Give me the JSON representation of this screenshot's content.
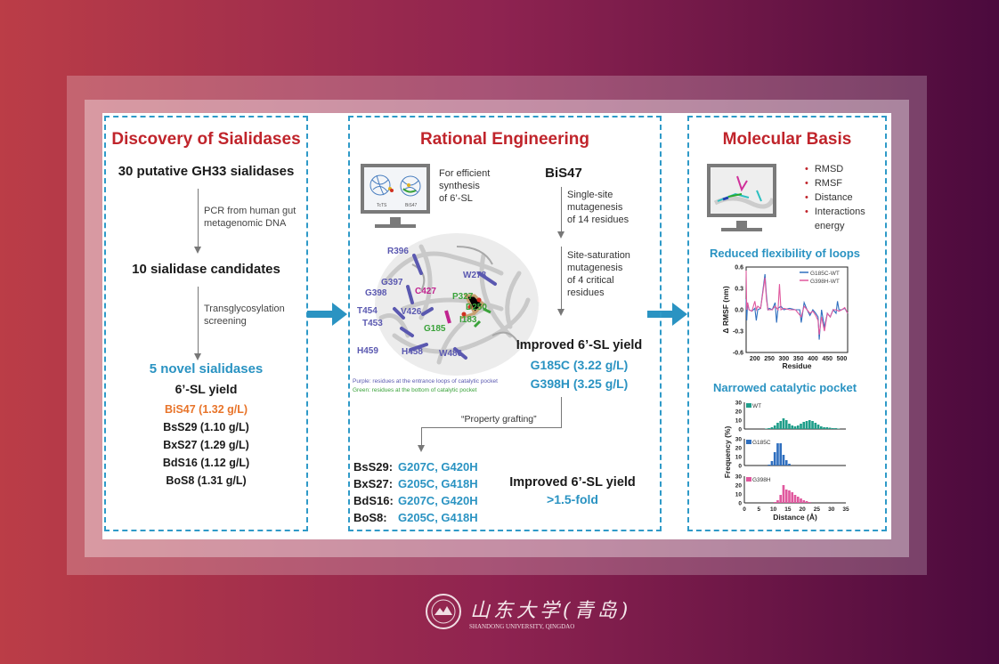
{
  "left": {
    "title": "Discovery of Sialidases",
    "step1": "30 putative GH33 sialidases",
    "arrow1": [
      "PCR from human gut",
      "metagenomic DNA"
    ],
    "step2": "10 sialidase candidates",
    "arrow2": [
      "Transglycosylation",
      "screening"
    ],
    "step3": "5 novel sialidases",
    "yield_label": "6’-SL yield",
    "yields": [
      {
        "text": "BiS47 (1.32 g/L)",
        "highlight": true
      },
      {
        "text": "BsS29 (1.10 g/L)"
      },
      {
        "text": "BxS27 (1.29 g/L)"
      },
      {
        "text": "BdS16 (1.12 g/L)"
      },
      {
        "text": "BoS8 (1.31 g/L)"
      }
    ]
  },
  "middle": {
    "title": "Rational Engineering",
    "monitor_labels": [
      "TcTS",
      "BiS47"
    ],
    "monitor_caption": [
      "For efficient",
      "synthesis",
      "of 6’-SL"
    ],
    "enzyme": "BiS47",
    "arrow1": [
      "Single-site",
      "mutagenesis",
      "of 14 residues"
    ],
    "arrow2": [
      "Site-saturation",
      "mutagenesis",
      "of 4 critical",
      "residues"
    ],
    "improved": "Improved 6’-SL yield",
    "mutants": [
      "G185C (3.22 g/L)",
      "G398H (3.25 g/L)"
    ],
    "residues_purple": [
      "R396",
      "W278",
      "G397",
      "G398",
      "V426",
      "T454",
      "T453",
      "H459",
      "H458",
      "W486"
    ],
    "residues_green": [
      "P327",
      "D250",
      "I183",
      "G185"
    ],
    "residue_magenta": "C427",
    "legend_purple": "Purple: residues at the entrance loops of catalytic pocket",
    "legend_green": "Green: residues at the bottom of catalytic pocket",
    "grafting": "“Property grafting”",
    "grafts": [
      {
        "name": "BsS29:",
        "muts": "G207C, G420H"
      },
      {
        "name": "BxS27:",
        "muts": "G205C, G418H"
      },
      {
        "name": "BdS16:",
        "muts": "G207C, G420H"
      },
      {
        "name": "BoS8:",
        "muts": "G205C, G418H"
      }
    ],
    "improved2": "Improved 6’-SL yield",
    "fold": ">1.5-fold"
  },
  "right": {
    "title": "Molecular Basis",
    "bullets": [
      "RMSD",
      "RMSF",
      "Distance",
      "Interactions energy"
    ],
    "chart1_title": "Reduced flexibility of loops",
    "chart2_title": "Narrowed catalytic pocket"
  },
  "logo": {
    "text": "山东大学(青岛)",
    "sub": "SHANDONG UNIVERSITY, QINGDAO"
  },
  "colors": {
    "title_red": "#c0242b",
    "accent_blue": "#2a93c2",
    "highlight_orange": "#e8742a",
    "wt": "#1f9e8a",
    "g185c": "#2f6fbf",
    "g398h": "#e0589e"
  },
  "chart_data": [
    {
      "type": "line",
      "xlabel": "Residue",
      "ylabel": "Δ RMSF (nm)",
      "xlim": [
        170,
        520
      ],
      "ylim": [
        -0.6,
        0.6
      ],
      "xticks": [
        200,
        250,
        300,
        350,
        400,
        450,
        500
      ],
      "yticks": [
        -0.6,
        -0.3,
        0.0,
        0.3,
        0.6
      ],
      "legend": "top-right",
      "series": [
        {
          "name": "G185C-WT",
          "color": "#2f6fbf",
          "x": [
            170,
            172,
            175,
            180,
            190,
            200,
            205,
            210,
            220,
            235,
            240,
            245,
            250,
            260,
            270,
            275,
            280,
            290,
            300,
            320,
            340,
            355,
            360,
            370,
            380,
            390,
            400,
            410,
            418,
            422,
            430,
            440,
            450,
            460,
            470,
            480,
            485,
            490,
            500,
            510,
            520
          ],
          "y": [
            0.15,
            -0.15,
            0.1,
            0.0,
            -0.02,
            0.02,
            -0.15,
            0.0,
            0.02,
            0.5,
            0.2,
            0.0,
            0.02,
            0.0,
            0.1,
            -0.18,
            0.02,
            0.05,
            0.0,
            0.02,
            0.0,
            0.0,
            -0.18,
            0.1,
            0.0,
            -0.08,
            0.0,
            -0.05,
            -0.1,
            -0.42,
            0.0,
            -0.25,
            -0.05,
            -0.1,
            0.0,
            -0.05,
            0.12,
            0.0,
            0.0,
            0.02,
            -0.05
          ]
        },
        {
          "name": "G398H-WT",
          "color": "#e0589e",
          "x": [
            170,
            172,
            175,
            180,
            190,
            200,
            205,
            210,
            220,
            235,
            240,
            245,
            250,
            260,
            270,
            280,
            285,
            290,
            300,
            320,
            340,
            360,
            370,
            380,
            390,
            400,
            410,
            418,
            422,
            430,
            440,
            450,
            460,
            470,
            480,
            490,
            500,
            510,
            520
          ],
          "y": [
            0.55,
            0.0,
            0.1,
            0.0,
            -0.02,
            0.12,
            0.0,
            0.05,
            0.02,
            0.45,
            0.15,
            0.0,
            0.0,
            0.0,
            0.05,
            0.0,
            0.36,
            0.0,
            0.02,
            0.0,
            0.0,
            -0.1,
            0.05,
            0.0,
            -0.05,
            -0.02,
            -0.08,
            -0.15,
            -0.35,
            -0.1,
            -0.3,
            -0.05,
            -0.1,
            0.0,
            0.0,
            -0.02,
            0.0,
            0.03,
            -0.05
          ]
        }
      ]
    },
    {
      "type": "bar",
      "xlabel": "Distance (Å)",
      "ylabel": "Frequency (%)",
      "xlim": [
        0,
        35
      ],
      "ylim": [
        0,
        30
      ],
      "xticks": [
        0,
        5,
        10,
        15,
        20,
        25,
        30,
        35
      ],
      "yticks": [
        0,
        10,
        20,
        30
      ],
      "series": [
        {
          "name": "WT",
          "color": "#1f9e8a",
          "start": 7,
          "values": [
            0.5,
            1,
            2,
            4,
            7,
            9,
            12,
            10,
            6,
            4,
            3,
            4,
            6,
            8,
            9,
            10,
            9,
            7,
            5,
            3,
            2,
            2,
            1.5,
            1,
            1,
            0.5
          ]
        },
        {
          "name": "G185C",
          "color": "#2f6fbf",
          "start": 8,
          "values": [
            1,
            5,
            15,
            25,
            25,
            12,
            6,
            2
          ]
        },
        {
          "name": "G398H",
          "color": "#e0589e",
          "start": 10,
          "values": [
            1,
            3,
            9,
            20,
            15,
            14,
            12,
            9,
            7,
            5,
            3,
            2,
            1
          ]
        }
      ]
    }
  ]
}
